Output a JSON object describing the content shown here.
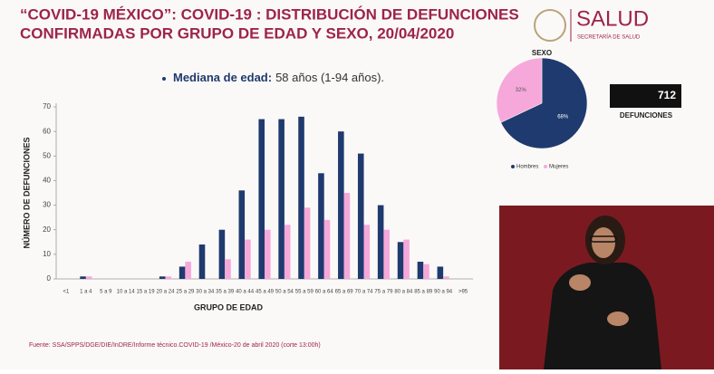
{
  "slide": {
    "title_line1": "“COVID-19 MÉXICO”: COVID-19 : DISTRIBUCIÓN DE DEFUNCIONES",
    "title_line2": "CONFIRMADAS POR GRUPO DE EDAD Y SEXO, 20/04/2020",
    "logo": "SALUD",
    "logo_sub": "SECRETARÍA DE SALUD",
    "median_label": "Mediana de edad:",
    "median_value": "58 años (1-94 años).",
    "total": "712",
    "total_label": "DEFUNCIONES",
    "source": "Fuente: SSA/SPPS/DGE/DIE/InDRE/Informe técnico.COVID-19 /México-20 de abril 2020 (corte 13:00h)"
  },
  "chart_data": [
    {
      "type": "bar",
      "x_label": "GRUPO DE EDAD",
      "y_label": "NÚMERO DE DEFUNCIONES",
      "categories": [
        "<1",
        "1 a 4",
        "5 a 9",
        "10 a 14",
        "15 a 19",
        "20 a 24",
        "25 a 29",
        "30 a 34",
        "35 a 39",
        "40 a 44",
        "45 a 49",
        "50 a 54",
        "55 a 59",
        "60 a 64",
        "65 a 69",
        "70 a 74",
        "75 a 79",
        "80 a 84",
        "85 a 89",
        "90 a 94",
        ">95"
      ],
      "series": [
        {
          "color": "#1f3a6e",
          "values": [
            0,
            1,
            0,
            0,
            0,
            1,
            5,
            14,
            20,
            36,
            65,
            65,
            66,
            43,
            60,
            51,
            30,
            15,
            7,
            5,
            0
          ]
        },
        {
          "color": "#f6a8da",
          "values": [
            0,
            1,
            0,
            0,
            0,
            1,
            7,
            0,
            8,
            16,
            20,
            22,
            29,
            24,
            35,
            22,
            20,
            16,
            6,
            1,
            0
          ]
        }
      ],
      "ylim": [
        0,
        70
      ],
      "yticks": [
        0,
        10,
        20,
        30,
        40,
        50,
        60,
        70
      ],
      "grid": false
    },
    {
      "type": "pie",
      "title": "SEXO",
      "categories": [
        "Hombres",
        "Mujeres"
      ],
      "colors": [
        "#1f3a6e",
        "#f6a8da"
      ],
      "values": [
        68,
        32
      ],
      "value_labels": [
        "68%",
        "32%"
      ]
    }
  ]
}
